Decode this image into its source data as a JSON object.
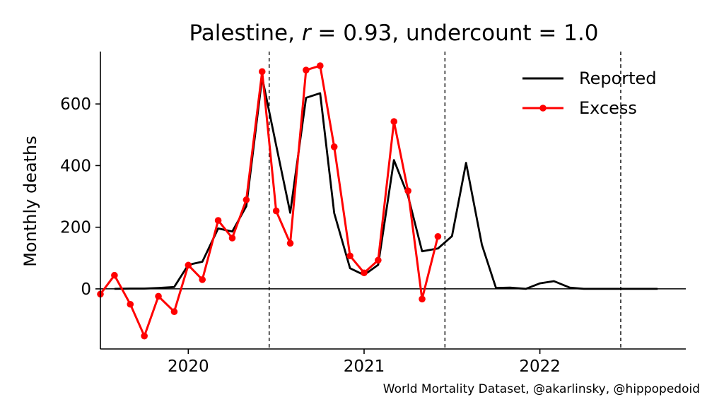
{
  "chart_data": {
    "type": "line",
    "title": "Palestine, r = 0.93, undercount = 1.0",
    "title_parts": {
      "prefix": "Palestine, ",
      "r_symbol": "r",
      "r_rest": " = 0.93, undercount = 1.0"
    },
    "xlabel": "",
    "ylabel": "Monthly deaths",
    "x_ticks": [
      {
        "x": 2020.0,
        "label": "2020"
      },
      {
        "x": 2021.0,
        "label": "2021"
      },
      {
        "x": 2022.0,
        "label": "2022"
      }
    ],
    "y_ticks": [
      {
        "y": 0,
        "label": "0"
      },
      {
        "y": 200,
        "label": "200"
      },
      {
        "y": 400,
        "label": "400"
      },
      {
        "y": 600,
        "label": "600"
      }
    ],
    "xlim": [
      2019.5,
      2022.83
    ],
    "ylim": [
      -195,
      770
    ],
    "grid": false,
    "legend_position": "top-right",
    "zero_line": true,
    "vertical_dashed_lines": [
      2020.46,
      2021.46,
      2022.46
    ],
    "series": [
      {
        "name": "Reported",
        "color": "#000000",
        "markers": false,
        "x": [
          2019.58,
          2019.67,
          2019.75,
          2019.83,
          2019.92,
          2020.0,
          2020.08,
          2020.17,
          2020.25,
          2020.33,
          2020.42,
          2020.5,
          2020.58,
          2020.67,
          2020.75,
          2020.83,
          2020.92,
          2021.0,
          2021.08,
          2021.17,
          2021.25,
          2021.33,
          2021.42,
          2021.5,
          2021.58,
          2021.67,
          2021.75,
          2021.83,
          2021.92,
          2022.0,
          2022.08,
          2022.17,
          2022.25,
          2022.33,
          2022.42,
          2022.5,
          2022.58,
          2022.67
        ],
        "values": [
          0,
          1,
          1,
          3,
          6,
          78,
          88,
          196,
          186,
          268,
          686,
          466,
          247,
          620,
          635,
          246,
          67,
          45,
          78,
          418,
          302,
          122,
          131,
          171,
          409,
          143,
          3,
          4,
          0,
          18,
          25,
          4,
          0,
          0,
          0,
          0,
          0,
          0
        ]
      },
      {
        "name": "Excess",
        "color": "#ff0000",
        "markers": true,
        "x": [
          2019.5,
          2019.58,
          2019.67,
          2019.75,
          2019.83,
          2019.92,
          2020.0,
          2020.08,
          2020.17,
          2020.25,
          2020.33,
          2020.42,
          2020.5,
          2020.58,
          2020.67,
          2020.75,
          2020.83,
          2020.92,
          2021.0,
          2021.08,
          2021.17,
          2021.25,
          2021.33,
          2021.42
        ],
        "values": [
          -17,
          44,
          -50,
          -153,
          -24,
          -74,
          77,
          30,
          222,
          165,
          289,
          705,
          253,
          148,
          710,
          724,
          461,
          107,
          52,
          93,
          543,
          318,
          -33,
          170
        ]
      }
    ]
  },
  "footer": {
    "credit": "World Mortality Dataset, @akarlinsky, @hippopedoid"
  }
}
